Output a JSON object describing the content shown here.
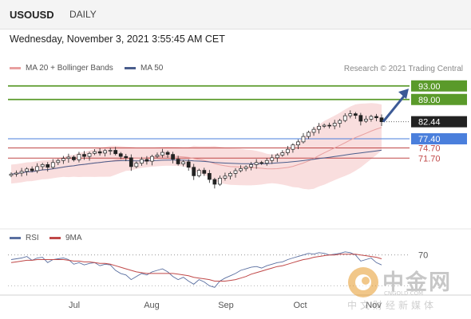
{
  "header": {
    "symbol": "USOUSD",
    "timeframe": "DAILY"
  },
  "datetime": "Wednesday, November 3, 2021 3:55:45 AM CET",
  "legend": [
    {
      "label": "MA 20 + Bollinger Bands",
      "color": "#e8a0a0"
    },
    {
      "label": "MA 50",
      "color": "#4a5d8c"
    }
  ],
  "copyright": "Research © 2021 Trading Central",
  "colors": {
    "resistance": "#5a9a2a",
    "current": "#222222",
    "pivot": "#4a7fdc",
    "support": "#c04848",
    "arrow": "#3c5a96",
    "candle_up": "#ffffff",
    "candle_down": "#222222",
    "band_fill": "#f9dede",
    "rsi": "#5a6fa0",
    "ma9": "#c04848"
  },
  "chart_data": {
    "type": "candlestick",
    "x_axis": {
      "labels": [
        "Jul",
        "Aug",
        "Sep",
        "Oct",
        "Nov"
      ]
    },
    "price_levels": [
      {
        "value": 93.0,
        "label": "93.00",
        "kind": "resistance"
      },
      {
        "value": 89.0,
        "label": "89.00",
        "kind": "resistance"
      },
      {
        "value": 82.44,
        "label": "82.44",
        "kind": "current"
      },
      {
        "value": 77.4,
        "label": "77.40",
        "kind": "pivot"
      },
      {
        "value": 74.7,
        "label": "74.70",
        "kind": "support"
      },
      {
        "value": 71.7,
        "label": "71.70",
        "kind": "support"
      }
    ],
    "ylim": [
      52,
      96
    ],
    "indicators": [
      "MA 20 + Bollinger Bands",
      "MA 50"
    ],
    "closes": [
      67,
      67.3,
      67.8,
      68.5,
      68,
      69.2,
      69.8,
      69,
      70.4,
      71,
      71.6,
      72,
      71.2,
      72.8,
      72.2,
      73.1,
      73.6,
      73.2,
      73.9,
      74,
      73,
      72.2,
      71.8,
      69.2,
      70.2,
      71.3,
      70.8,
      72.2,
      72.6,
      73.4,
      72.8,
      71.4,
      70,
      70.6,
      69,
      66.5,
      68.1,
      67.2,
      65.4,
      64,
      65.8,
      66.4,
      67.2,
      68,
      68.6,
      69.1,
      69.8,
      70.4,
      70.2,
      71,
      71.8,
      72.6,
      73.3,
      74.3,
      75.6,
      76.5,
      78.1,
      79.3,
      80.2,
      81.1,
      81.4,
      81.2,
      82,
      82.8,
      84.2,
      84.8,
      84.3,
      82.6,
      83.2,
      84,
      83.6,
      82.44
    ],
    "rsi": {
      "label": "RSI",
      "ma_label": "9MA",
      "levels": [
        {
          "value": 70,
          "label": "70"
        }
      ],
      "values": [
        64,
        65,
        66,
        68,
        63,
        66,
        67,
        60,
        64,
        65,
        66,
        64,
        58,
        60,
        57,
        59,
        60,
        56,
        58,
        57,
        50,
        46,
        44,
        38,
        42,
        46,
        44,
        48,
        50,
        52,
        48,
        42,
        38,
        41,
        36,
        32,
        38,
        35,
        30,
        28,
        36,
        40,
        43,
        46,
        50,
        52,
        54,
        55,
        53,
        56,
        58,
        60,
        61,
        64,
        66,
        68,
        70,
        72,
        71,
        73,
        72,
        70,
        71,
        72,
        74,
        73,
        70,
        62,
        64,
        66,
        60,
        57
      ],
      "ma_values": [
        60,
        61,
        62,
        63,
        63,
        64,
        64,
        64,
        64,
        64,
        64,
        63,
        62,
        62,
        61,
        61,
        60,
        59,
        59,
        58,
        56,
        54,
        52,
        50,
        48,
        47,
        46,
        46,
        46,
        46,
        46,
        46,
        45,
        44,
        43,
        41,
        40,
        39,
        38,
        36,
        36,
        36,
        37,
        38,
        40,
        42,
        45,
        47,
        49,
        51,
        53,
        55,
        56,
        58,
        60,
        62,
        64,
        65,
        67,
        68,
        69,
        70,
        70,
        71,
        71,
        71,
        71,
        70,
        69,
        68,
        67,
        65
      ]
    }
  },
  "rsi_legend": [
    {
      "label": "RSI",
      "color": "#5a6fa0"
    },
    {
      "label": "9MA",
      "color": "#c04848"
    }
  ],
  "watermark": {
    "name": "中金网",
    "site": "CNGOLD.COM",
    "slogan": "中文财经新媒体"
  }
}
